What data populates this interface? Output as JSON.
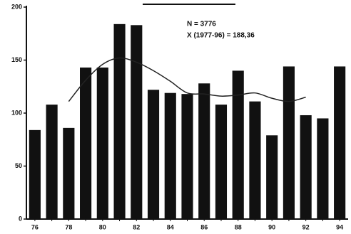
{
  "chart_data": {
    "type": "bar",
    "annotations": [
      "N = 3776",
      "X (1977-96) = 188,36"
    ],
    "categories": [
      "76",
      null,
      "78",
      null,
      "80",
      null,
      "82",
      null,
      "84",
      null,
      "86",
      null,
      "88",
      null,
      "90",
      null,
      "92",
      null,
      "94"
    ],
    "series": [
      {
        "color": "#111111",
        "values": [
          84,
          108,
          86,
          143,
          143,
          184,
          183,
          122,
          119,
          118,
          128,
          108,
          140,
          111,
          79,
          144,
          98,
          95,
          144
        ]
      },
      {
        "type": "line",
        "color": "#222222",
        "values": [
          null,
          null,
          111,
          131,
          146,
          152,
          148,
          140,
          130,
          119,
          118,
          116,
          117,
          119,
          114,
          111,
          115,
          null,
          null
        ]
      }
    ],
    "ylim": [
      0,
      200
    ],
    "yticks": [
      0,
      50,
      100,
      150,
      200
    ]
  }
}
